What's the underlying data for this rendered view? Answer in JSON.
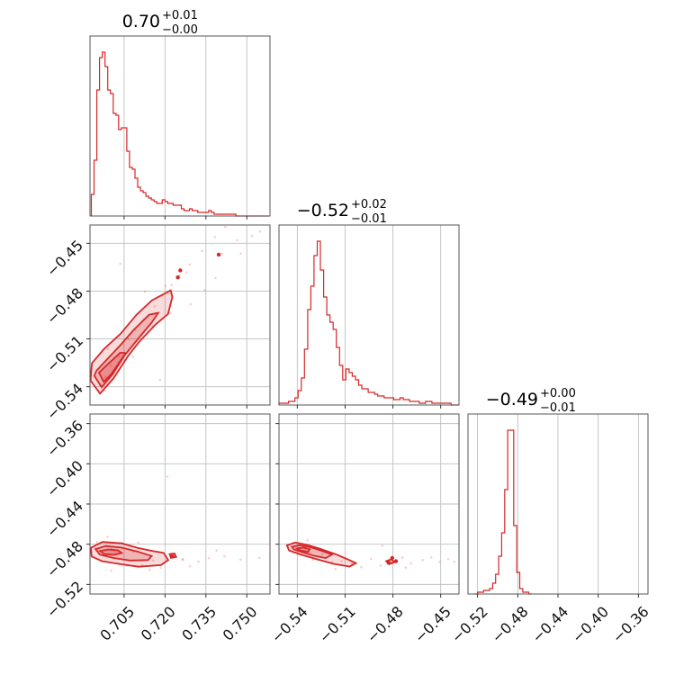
{
  "chart_data": {
    "type": "corner",
    "color": "#d62728",
    "parameters": [
      {
        "median": "0.70",
        "plus": "+0.01",
        "minus": "−0.00",
        "range": [
          0.6925,
          0.7585
        ],
        "ticks": [
          0.705,
          0.72,
          0.735,
          0.75
        ],
        "tick_labels": [
          "0.705",
          "0.720",
          "0.735",
          "0.750"
        ],
        "hist_x": [
          0.6935,
          0.6945,
          0.6955,
          0.6965,
          0.6975,
          0.6985,
          0.6995,
          0.7005,
          0.7015,
          0.7025,
          0.7035,
          0.7045,
          0.7055,
          0.7065,
          0.7075,
          0.7085,
          0.7095,
          0.7105,
          0.7115,
          0.7125,
          0.7135,
          0.7145,
          0.7155,
          0.7165,
          0.7175,
          0.7185,
          0.7195,
          0.7205,
          0.7215,
          0.7225,
          0.7235,
          0.7245,
          0.7255,
          0.7265,
          0.7275,
          0.7285,
          0.7295,
          0.7305,
          0.7315,
          0.7325,
          0.7335,
          0.7345,
          0.7355,
          0.7365,
          0.7375,
          0.7385,
          0.7395,
          0.7405,
          0.7415,
          0.7425,
          0.7435,
          0.7445,
          0.7455,
          0.7465,
          0.7475,
          0.7485,
          0.7495,
          0.7505,
          0.7515,
          0.7525,
          0.7535,
          0.7545,
          0.7555,
          0.7565,
          0.7575
        ],
        "hist_counts": [
          12,
          31,
          70,
          88,
          91,
          83,
          70,
          68,
          57,
          56,
          48,
          49,
          49,
          36,
          27,
          26,
          21,
          16,
          14,
          13,
          11,
          10,
          9,
          8,
          7,
          7,
          9,
          8,
          7,
          7,
          6,
          6,
          6,
          4,
          3,
          3,
          4,
          3,
          3,
          2,
          2,
          2,
          2,
          3,
          2,
          1,
          1,
          1,
          1,
          1,
          1,
          1,
          1,
          0,
          0,
          0,
          0,
          0,
          0,
          0,
          0,
          0,
          0,
          0,
          0
        ]
      },
      {
        "median": "−0.52",
        "plus": "+0.02",
        "minus": "−0.01",
        "range": [
          -0.5515,
          -0.4385
        ],
        "ticks": [
          -0.54,
          -0.51,
          -0.48,
          -0.45
        ],
        "tick_labels": [
          "−0.54",
          "−0.51",
          "−0.48",
          "−0.45"
        ],
        "hist_x": [
          -0.5505,
          -0.5485,
          -0.5465,
          -0.5445,
          -0.5425,
          -0.5405,
          -0.5385,
          -0.5365,
          -0.5345,
          -0.5325,
          -0.5305,
          -0.5285,
          -0.5265,
          -0.5245,
          -0.5225,
          -0.5205,
          -0.5185,
          -0.5165,
          -0.5145,
          -0.5125,
          -0.5105,
          -0.5085,
          -0.5065,
          -0.5045,
          -0.5025,
          -0.5005,
          -0.4985,
          -0.4965,
          -0.4945,
          -0.4925,
          -0.4905,
          -0.4885,
          -0.4865,
          -0.4845,
          -0.4825,
          -0.4805,
          -0.4785,
          -0.4765,
          -0.4745,
          -0.4725,
          -0.4705,
          -0.4685,
          -0.4665,
          -0.4645,
          -0.4625,
          -0.4605,
          -0.4585,
          -0.4565,
          -0.4545,
          -0.4525,
          -0.4505,
          -0.4485,
          -0.4465,
          -0.4445,
          -0.4425,
          -0.4405,
          -0.4395
        ],
        "hist_counts": [
          1,
          1,
          1,
          2,
          2,
          4,
          8,
          15,
          31,
          53,
          66,
          83,
          91,
          75,
          60,
          50,
          46,
          42,
          32,
          22,
          14,
          20,
          18,
          16,
          14,
          11,
          9,
          9,
          7,
          7,
          6,
          5,
          5,
          4,
          4,
          4,
          3,
          3,
          4,
          3,
          3,
          2,
          2,
          2,
          1,
          1,
          2,
          2,
          1,
          1,
          1,
          1,
          1,
          1,
          0,
          0,
          0
        ]
      },
      {
        "median": "−0.49",
        "plus": "+0.00",
        "minus": "−0.01",
        "range": [
          -0.5295,
          -0.3505
        ],
        "ticks": [
          -0.52,
          -0.48,
          -0.44,
          -0.4,
          -0.36
        ],
        "tick_labels": [
          "−0.52",
          "−0.48",
          "−0.44",
          "−0.40",
          "−0.36"
        ],
        "hist_x": [
          -0.5215,
          -0.5185,
          -0.5155,
          -0.5125,
          -0.5095,
          -0.5065,
          -0.5035,
          -0.5005,
          -0.4975,
          -0.4945,
          -0.4915,
          -0.4885,
          -0.4855,
          -0.4825,
          -0.4795,
          -0.4765,
          -0.4735,
          -0.4705,
          -0.4675
        ],
        "hist_counts": [
          0,
          1,
          1,
          2,
          2,
          3,
          6,
          11,
          21,
          34,
          58,
          91,
          91,
          38,
          12,
          3,
          1,
          1,
          0
        ]
      }
    ],
    "scatter": [
      {
        "pair": [
          0,
          1
        ],
        "points": [
          [
            0.6962,
            -0.5391
          ],
          [
            0.6981,
            -0.5341
          ],
          [
            0.7002,
            -0.5268
          ],
          [
            0.7032,
            -0.5208
          ],
          [
            0.7066,
            -0.5102
          ],
          [
            0.7092,
            -0.5045
          ],
          [
            0.7122,
            -0.4977
          ],
          [
            0.7162,
            -0.4896
          ],
          [
            0.7191,
            -0.4831
          ],
          [
            0.7224,
            -0.4762
          ],
          [
            0.7253,
            -0.4702
          ],
          [
            0.7291,
            -0.4633
          ],
          [
            0.7336,
            -0.4547
          ],
          [
            0.7383,
            -0.4461
          ],
          [
            0.7421,
            -0.4397
          ],
          [
            0.7465,
            -0.4481
          ],
          [
            0.7478,
            -0.4565
          ],
          [
            0.7519,
            -0.4453
          ],
          [
            0.7549,
            -0.4426
          ],
          [
            0.7182,
            -0.5358
          ],
          [
            0.7294,
            -0.4882
          ],
          [
            0.7346,
            -0.4794
          ],
          [
            0.7409,
            -0.4566
          ],
          [
            0.7036,
            -0.4628
          ],
          [
            0.7082,
            -0.5212
          ],
          [
            0.6991,
            -0.5163
          ],
          [
            0.7127,
            -0.4803
          ],
          [
            0.7219,
            -0.4938
          ],
          [
            0.7279,
            -0.4682
          ],
          [
            0.7385,
            -0.4718
          ],
          [
            0.7011,
            -0.5315
          ],
          [
            0.6978,
            -0.5426
          ],
          [
            0.7043,
            -0.5132
          ],
          [
            0.7155,
            -0.5021
          ],
          [
            0.7202,
            -0.4768
          ]
        ],
        "core_points": [
          [
            0.7247,
            -0.4714
          ],
          [
            0.7256,
            -0.467
          ],
          [
            0.7397,
            -0.4571
          ]
        ]
      },
      {
        "pair": [
          0,
          2
        ],
        "points": [
          [
            0.6951,
            -0.4781
          ],
          [
            0.6973,
            -0.4912
          ],
          [
            0.7003,
            -0.4848
          ],
          [
            0.7028,
            -0.4992
          ],
          [
            0.7059,
            -0.5012
          ],
          [
            0.7084,
            -0.4873
          ],
          [
            0.7116,
            -0.5008
          ],
          [
            0.7157,
            -0.4962
          ],
          [
            0.7184,
            -0.5034
          ],
          [
            0.7236,
            -0.4905
          ],
          [
            0.7265,
            -0.4948
          ],
          [
            0.7323,
            -0.4973
          ],
          [
            0.7361,
            -0.4938
          ],
          [
            0.7418,
            -0.4921
          ],
          [
            0.7477,
            -0.4952
          ],
          [
            0.7546,
            -0.4935
          ],
          [
            0.7209,
            -0.4127
          ],
          [
            0.7265,
            -0.4956
          ],
          [
            0.7003,
            -0.5062
          ],
          [
            0.6989,
            -0.4726
          ],
          [
            0.7102,
            -0.4782
          ],
          [
            0.7143,
            -0.5053
          ],
          [
            0.7292,
            -0.5018
          ],
          [
            0.7389,
            -0.4862
          ]
        ],
        "core_points": [
          [
            0.7227,
            -0.4922
          ]
        ]
      },
      {
        "pair": [
          1,
          2
        ],
        "points": [
          [
            -0.5458,
            -0.4803
          ],
          [
            -0.5402,
            -0.4886
          ],
          [
            -0.5351,
            -0.4842
          ],
          [
            -0.5303,
            -0.4955
          ],
          [
            -0.5243,
            -0.4901
          ],
          [
            -0.5182,
            -0.4979
          ],
          [
            -0.5122,
            -0.4968
          ],
          [
            -0.5058,
            -0.4993
          ],
          [
            -0.4998,
            -0.5027
          ],
          [
            -0.4937,
            -0.4946
          ],
          [
            -0.4877,
            -0.5012
          ],
          [
            -0.4809,
            -0.4985
          ],
          [
            -0.4741,
            -0.4934
          ],
          [
            -0.4686,
            -0.4991
          ],
          [
            -0.4614,
            -0.4958
          ],
          [
            -0.4559,
            -0.4931
          ],
          [
            -0.4507,
            -0.4977
          ],
          [
            -0.4453,
            -0.4946
          ],
          [
            -0.4414,
            -0.4974
          ],
          [
            -0.5337,
            -0.4761
          ],
          [
            -0.5161,
            -0.5047
          ],
          [
            -0.4867,
            -0.4815
          ],
          [
            -0.4719,
            -0.5033
          ]
        ],
        "core_points": [
          [
            -0.4827,
            -0.4984
          ],
          [
            -0.4804,
            -0.4937
          ],
          [
            -0.4781,
            -0.4969
          ]
        ]
      }
    ],
    "contours": [
      {
        "pair": [
          0,
          1
        ],
        "levels": [
          [
            [
              0.6927,
              -0.5362
            ],
            [
              0.6962,
              -0.5443
            ],
            [
              0.7011,
              -0.5348
            ],
            [
              0.7065,
              -0.5207
            ],
            [
              0.7104,
              -0.5121
            ],
            [
              0.7166,
              -0.5009
            ],
            [
              0.7211,
              -0.4944
            ],
            [
              0.7227,
              -0.4837
            ],
            [
              0.7221,
              -0.4795
            ],
            [
              0.7152,
              -0.4858
            ],
            [
              0.7096,
              -0.4948
            ],
            [
              0.7037,
              -0.5068
            ],
            [
              0.6977,
              -0.5162
            ],
            [
              0.6932,
              -0.5253
            ]
          ],
          [
            [
              0.6941,
              -0.5332
            ],
            [
              0.6968,
              -0.5403
            ],
            [
              0.7008,
              -0.5322
            ],
            [
              0.7051,
              -0.5205
            ],
            [
              0.7112,
              -0.5077
            ],
            [
              0.7151,
              -0.4998
            ],
            [
              0.7175,
              -0.4937
            ],
            [
              0.7142,
              -0.4948
            ],
            [
              0.7085,
              -0.5044
            ],
            [
              0.7035,
              -0.5142
            ],
            [
              0.6982,
              -0.5238
            ],
            [
              0.6948,
              -0.5301
            ]
          ],
          [
            [
              0.6958,
              -0.5312
            ],
            [
              0.6975,
              -0.5369
            ],
            [
              0.7003,
              -0.5321
            ],
            [
              0.7034,
              -0.5245
            ],
            [
              0.7056,
              -0.5189
            ],
            [
              0.7036,
              -0.5187
            ],
            [
              0.7008,
              -0.5231
            ],
            [
              0.6976,
              -0.5281
            ]
          ]
        ]
      },
      {
        "pair": [
          0,
          2
        ],
        "levels": [
          [
            [
              0.6928,
              -0.4836
            ],
            [
              0.6971,
              -0.4778
            ],
            [
              0.7041,
              -0.4791
            ],
            [
              0.7101,
              -0.4838
            ],
            [
              0.7157,
              -0.4869
            ],
            [
              0.7195,
              -0.4886
            ],
            [
              0.7212,
              -0.4957
            ],
            [
              0.7185,
              -0.5008
            ],
            [
              0.7103,
              -0.5024
            ],
            [
              0.7038,
              -0.4999
            ],
            [
              0.6969,
              -0.4968
            ],
            [
              0.6931,
              -0.4922
            ]
          ],
          [
            [
              0.6945,
              -0.4848
            ],
            [
              0.6982,
              -0.4818
            ],
            [
              0.7038,
              -0.4832
            ],
            [
              0.7098,
              -0.4872
            ],
            [
              0.7151,
              -0.4917
            ],
            [
              0.7138,
              -0.4958
            ],
            [
              0.7072,
              -0.4962
            ],
            [
              0.7011,
              -0.4937
            ],
            [
              0.6961,
              -0.4903
            ]
          ],
          [
            [
              0.6962,
              -0.4868
            ],
            [
              0.6991,
              -0.4852
            ],
            [
              0.7028,
              -0.4861
            ],
            [
              0.7041,
              -0.4887
            ],
            [
              0.7012,
              -0.4906
            ],
            [
              0.6978,
              -0.4899
            ]
          ],
          [
            [
              0.7217,
              -0.4898
            ],
            [
              0.7235,
              -0.4892
            ],
            [
              0.7241,
              -0.4926
            ],
            [
              0.7222,
              -0.4937
            ]
          ]
        ]
      },
      {
        "pair": [
          1,
          2
        ],
        "levels": [
          [
            [
              -0.5465,
              -0.4812
            ],
            [
              -0.5412,
              -0.4783
            ],
            [
              -0.5342,
              -0.4805
            ],
            [
              -0.5262,
              -0.4843
            ],
            [
              -0.5162,
              -0.4898
            ],
            [
              -0.5082,
              -0.4951
            ],
            [
              -0.5032,
              -0.4988
            ],
            [
              -0.5072,
              -0.5022
            ],
            [
              -0.5172,
              -0.4995
            ],
            [
              -0.5272,
              -0.4951
            ],
            [
              -0.5382,
              -0.4901
            ],
            [
              -0.5452,
              -0.4862
            ]
          ],
          [
            [
              -0.5435,
              -0.4826
            ],
            [
              -0.5388,
              -0.4809
            ],
            [
              -0.5322,
              -0.4828
            ],
            [
              -0.5252,
              -0.4862
            ],
            [
              -0.5182,
              -0.4902
            ],
            [
              -0.5222,
              -0.4938
            ],
            [
              -0.5302,
              -0.4912
            ],
            [
              -0.5372,
              -0.4878
            ],
            [
              -0.5422,
              -0.4852
            ]
          ],
          [
            [
              -0.5402,
              -0.4842
            ],
            [
              -0.5362,
              -0.4832
            ],
            [
              -0.5322,
              -0.4851
            ],
            [
              -0.5332,
              -0.4876
            ],
            [
              -0.5382,
              -0.4862
            ]
          ],
          [
            [
              -0.4842,
              -0.4968
            ],
            [
              -0.4808,
              -0.4949
            ],
            [
              -0.4791,
              -0.4978
            ],
            [
              -0.4822,
              -0.4998
            ]
          ]
        ]
      }
    ]
  }
}
